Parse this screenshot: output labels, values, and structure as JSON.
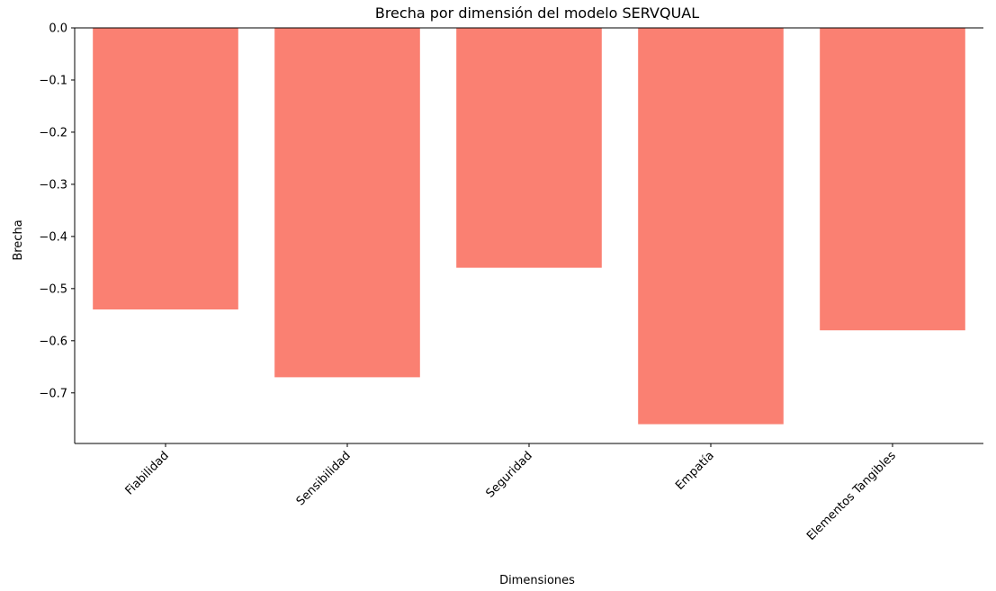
{
  "chart_data": {
    "type": "bar",
    "title": "Brecha por dimensión del modelo SERVQUAL",
    "xlabel": "Dimensiones",
    "ylabel": "Brecha",
    "categories": [
      "Fiabilidad",
      "Sensibilidad",
      "Seguridad",
      "Empatía",
      "Elementos Tangibles"
    ],
    "values": [
      -0.54,
      -0.67,
      -0.46,
      -0.76,
      -0.58
    ],
    "ylim": [
      -0.797,
      0.0
    ],
    "yticks": [
      0.0,
      -0.1,
      -0.2,
      -0.3,
      -0.4,
      -0.5,
      -0.6,
      -0.7
    ],
    "ytick_labels": [
      "0.0",
      "−0.1",
      "−0.2",
      "−0.3",
      "−0.4",
      "−0.5",
      "−0.6",
      "−0.7"
    ],
    "bar_color": "#fa8072",
    "grid": false,
    "legend": "none"
  }
}
